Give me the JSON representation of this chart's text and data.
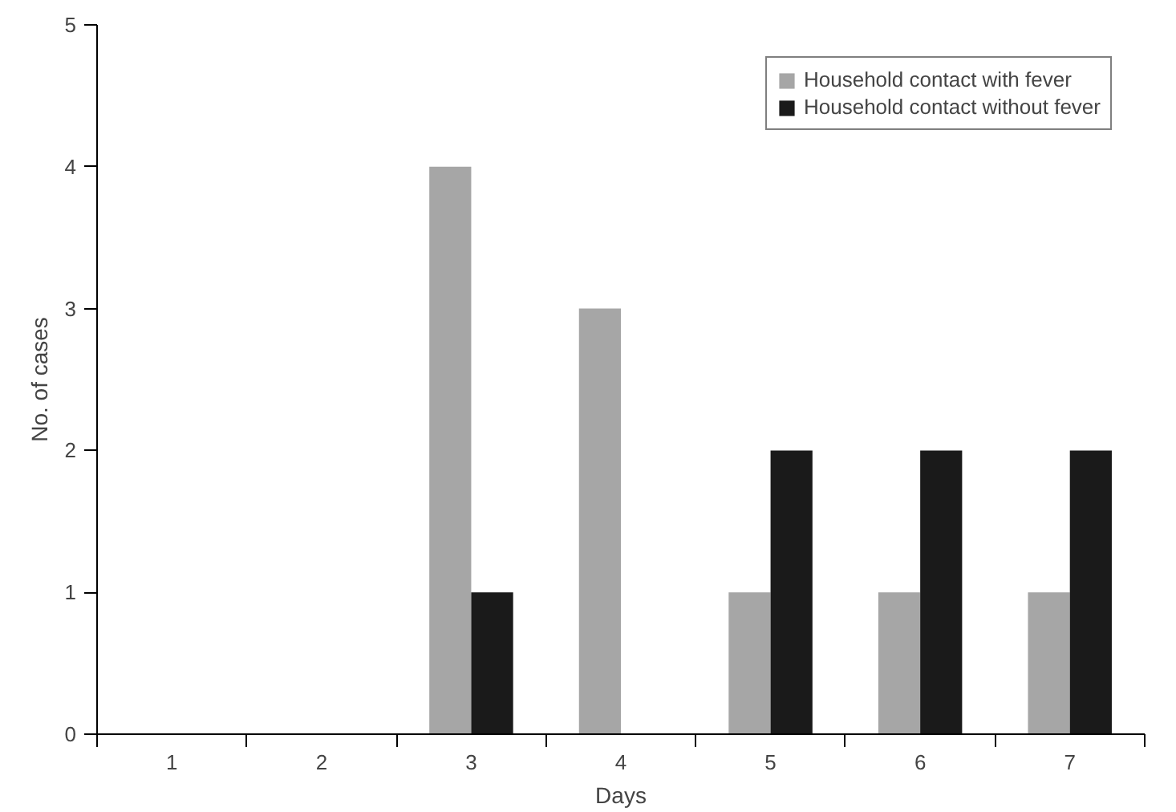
{
  "chart_data": {
    "type": "bar",
    "xlabel": "Days",
    "ylabel": "No. of cases",
    "categories": [
      "1",
      "2",
      "3",
      "4",
      "5",
      "6",
      "7"
    ],
    "series": [
      {
        "name": "Household contact with fever",
        "color": "#a6a6a6",
        "values": [
          0,
          0,
          4,
          3,
          1,
          1,
          1
        ]
      },
      {
        "name": "Household contact without fever",
        "color": "#1a1a1a",
        "values": [
          0,
          0,
          1,
          0,
          2,
          2,
          2
        ]
      }
    ],
    "ylim": [
      0,
      5
    ],
    "yticks": [
      0,
      1,
      2,
      3,
      4,
      5
    ],
    "grid": false,
    "legend": "top right"
  }
}
